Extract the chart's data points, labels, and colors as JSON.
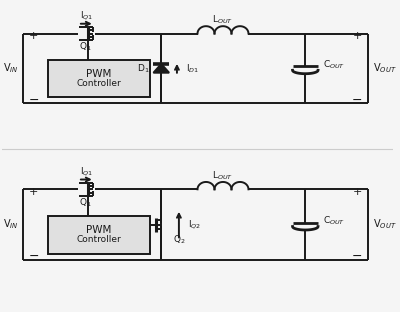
{
  "bg": "#f5f5f5",
  "lc": "#1a1a1a",
  "lw": 1.4,
  "TT": 281,
  "TB": 210,
  "BT": 122,
  "BB": 50,
  "XL": 22,
  "XR": 374,
  "Q1X": 90,
  "XSW": 163,
  "XLi": 200,
  "XLr": 252,
  "XCx": 310,
  "PWM_box_color": "#e0e0e0",
  "labels": {
    "VIN": "V$_{IN}$",
    "VOUT": "V$_{OUT}$",
    "IQ1": "I$_{Q1}$",
    "ID1": "I$_{D1}$",
    "IQ2": "I$_{Q2}$",
    "LOUT": "L$_{OUT}$",
    "COUT": "C$_{OUT}$",
    "D1": "D$_1$",
    "Q1": "Q$_1$",
    "Q2": "Q$_2$",
    "PWM": "PWM",
    "Controller": "Controller",
    "plus": "+",
    "minus": "−"
  }
}
